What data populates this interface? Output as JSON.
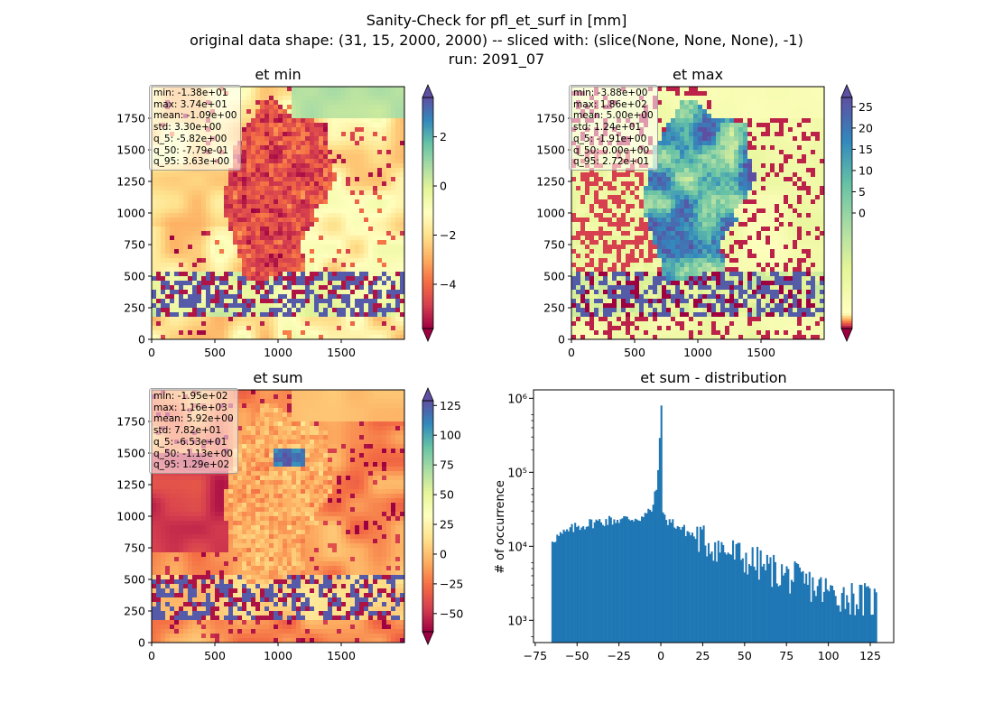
{
  "figure": {
    "title_lines": [
      "Sanity-Check for pfl_et_surf in [mm]",
      "original data shape: (31, 15, 2000, 2000) -- sliced with: (slice(None, None, None), -1)",
      "run: 2091_07"
    ]
  },
  "colormap": {
    "name": "Spectral",
    "stops": [
      "#9e0142",
      "#d53e4f",
      "#f46d43",
      "#fdae61",
      "#fee08b",
      "#ffffbf",
      "#e6f598",
      "#abdda4",
      "#66c2a5",
      "#3288bd",
      "#5e4fa2"
    ]
  },
  "panels": [
    {
      "title": "et min",
      "x_ticks": [
        "0",
        "500",
        "1000",
        "1500"
      ],
      "y_ticks": [
        "0",
        "250",
        "500",
        "750",
        "1000",
        "1250",
        "1500",
        "1750"
      ],
      "colorbar": {
        "vmin": -5.8,
        "vmax": 3.6,
        "ticks": [
          "−4",
          "−2",
          "0",
          "2"
        ],
        "tick_values": [
          -4,
          -2,
          0,
          2
        ]
      },
      "stats": [
        "min: -1.38e+01",
        "max: 3.74e+01",
        "mean: -1.09e+00",
        "std: 3.30e+00",
        "q_5: -5.82e+00",
        "q_50: -7.79e-01",
        "q_95: 3.63e+00"
      ]
    },
    {
      "title": "et max",
      "x_ticks": [
        "0",
        "500",
        "1000",
        "1500"
      ],
      "y_ticks": [
        "0",
        "250",
        "500",
        "750",
        "1000",
        "1250",
        "1500",
        "1750"
      ],
      "colorbar": {
        "vmin": -1.9,
        "vmax": 27.2,
        "ticks": [
          "0",
          "5",
          "10",
          "15",
          "20",
          "25"
        ],
        "tick_values": [
          0,
          5,
          10,
          15,
          20,
          25
        ],
        "twoslope_center": 0
      },
      "stats": [
        "min: -3.88e+00",
        "max: 1.86e+02",
        "mean: 5.00e+00",
        "std: 1.24e+01",
        "q_5: -1.91e+00",
        "q_50: 0.00e+00",
        "q_95: 2.72e+01"
      ]
    },
    {
      "title": "et sum",
      "x_ticks": [
        "0",
        "500",
        "1000",
        "1500"
      ],
      "y_ticks": [
        "0",
        "250",
        "500",
        "750",
        "1000",
        "1250",
        "1500",
        "1750"
      ],
      "colorbar": {
        "vmin": -65.3,
        "vmax": 129,
        "ticks": [
          "−50",
          "−25",
          "0",
          "25",
          "50",
          "75",
          "100",
          "125"
        ],
        "tick_values": [
          -50,
          -25,
          0,
          25,
          50,
          75,
          100,
          125
        ]
      },
      "stats": [
        "min: -1.95e+02",
        "max: 1.16e+03",
        "mean: 5.92e+00",
        "std: 7.82e+01",
        "q_5: -6.53e+01",
        "q_50: -1.13e+00",
        "q_95: 1.29e+02"
      ]
    }
  ],
  "chart_data": [
    {
      "type": "heatmap",
      "title": "et min",
      "xlim": [
        0,
        2000
      ],
      "ylim": [
        0,
        2000
      ],
      "color_range": [
        -5.8,
        3.6
      ],
      "colorbar_ticks": [
        -4,
        -2,
        0,
        2
      ],
      "colormap": "Spectral"
    },
    {
      "type": "heatmap",
      "title": "et max",
      "xlim": [
        0,
        2000
      ],
      "ylim": [
        0,
        2000
      ],
      "color_range": [
        -1.9,
        27.2
      ],
      "colorbar_ticks": [
        0,
        5,
        10,
        15,
        20,
        25
      ],
      "colormap": "Spectral"
    },
    {
      "type": "heatmap",
      "title": "et sum",
      "xlim": [
        0,
        2000
      ],
      "ylim": [
        0,
        2000
      ],
      "color_range": [
        -65.3,
        129
      ],
      "colorbar_ticks": [
        -50,
        -25,
        0,
        25,
        50,
        75,
        100,
        125
      ],
      "colormap": "Spectral"
    },
    {
      "type": "bar",
      "title": "et sum - distribution",
      "xlabel": "",
      "ylabel": "# of occurrence",
      "yscale": "log",
      "xlim": [
        -76,
        139
      ],
      "ylim": [
        500,
        1300000
      ],
      "x_ticks": [
        -75,
        -50,
        -25,
        0,
        25,
        50,
        75,
        100,
        125
      ],
      "x_tick_labels": [
        "−75",
        "−50",
        "−25",
        "0",
        "25",
        "50",
        "75",
        "100",
        "125"
      ],
      "y_ticks": [
        1000,
        10000,
        100000,
        1000000
      ],
      "y_tick_labels": [
        "10³",
        "10⁴",
        "10⁵",
        "10⁶"
      ],
      "bar_color": "#1f77b4",
      "bin_range": [
        -65.3,
        129
      ],
      "bins": 200,
      "approx_profile": [
        {
          "x": -65,
          "count": 12500
        },
        {
          "x": -60,
          "count": 14000
        },
        {
          "x": -55,
          "count": 16000
        },
        {
          "x": -50,
          "count": 18500
        },
        {
          "x": -40,
          "count": 21000
        },
        {
          "x": -30,
          "count": 22500
        },
        {
          "x": -20,
          "count": 23500
        },
        {
          "x": -10,
          "count": 25000
        },
        {
          "x": -5,
          "count": 33000
        },
        {
          "x": -2,
          "count": 70000
        },
        {
          "x": 0,
          "count": 800000
        },
        {
          "x": 1,
          "count": 25000
        },
        {
          "x": 5,
          "count": 22000
        },
        {
          "x": 15,
          "count": 16000
        },
        {
          "x": 25,
          "count": 12000
        },
        {
          "x": 40,
          "count": 8500
        },
        {
          "x": 60,
          "count": 5500
        },
        {
          "x": 80,
          "count": 3600
        },
        {
          "x": 100,
          "count": 2400
        },
        {
          "x": 120,
          "count": 1900
        },
        {
          "x": 129,
          "count": 1800
        }
      ]
    }
  ]
}
